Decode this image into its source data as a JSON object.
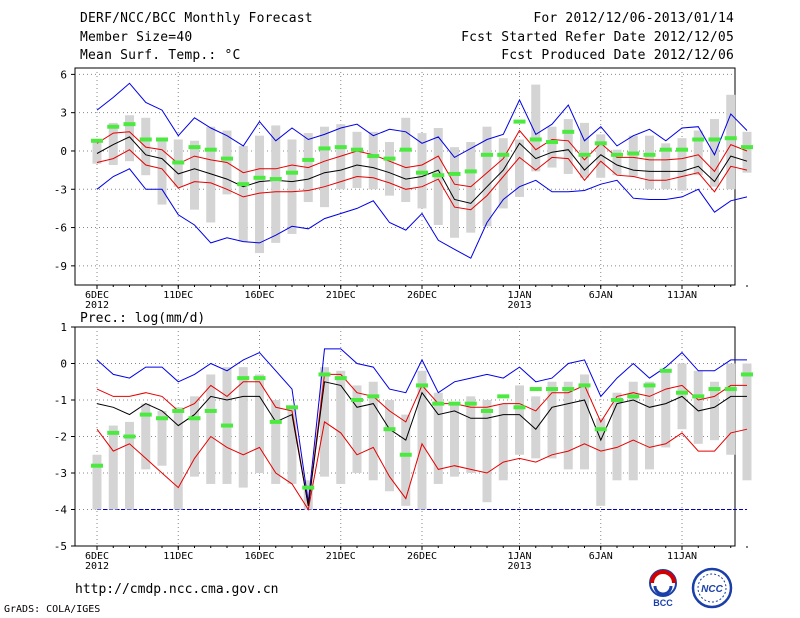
{
  "header": {
    "title": "DERF/NCC/BCC Monthly Forecast",
    "member_size": "Member Size=40",
    "variable": "Mean Surf. Temp.: °C",
    "period": "For 2012/12/06-2013/01/14",
    "refer_date": "Fcst Started Refer Date 2012/12/05",
    "produced_date": "Fcst Produced Date 2012/12/06"
  },
  "footer": {
    "url": "http://cmdp.ncc.cma.gov.cn",
    "grads": "GrADS: COLA/IGES",
    "logo_bcc": "BCC",
    "logo_ncc": "NCC"
  },
  "colors": {
    "ensemble_mean": "#000000",
    "spread": "#e60000",
    "extremes": "#0000e6",
    "box": "#d4d4d4",
    "median": "#4cea40",
    "grid": "#888888"
  },
  "chart_data": [
    {
      "type": "line",
      "title": "Mean Surf. Temp.: °C",
      "ylabel": "°C",
      "ylim": [
        -10.5,
        6.5
      ],
      "yticks": [
        6,
        3,
        0,
        -3,
        -6,
        -9
      ],
      "x_ticks": [
        {
          "day": 0,
          "label": "6DEC",
          "label2": "2012"
        },
        {
          "day": 5,
          "label": "11DEC"
        },
        {
          "day": 10,
          "label": "16DEC"
        },
        {
          "day": 15,
          "label": "21DEC"
        },
        {
          "day": 20,
          "label": "26DEC"
        },
        {
          "day": 26,
          "label": "1JAN",
          "label2": "2013"
        },
        {
          "day": 31,
          "label": "6JAN"
        },
        {
          "day": 36,
          "label": "11JAN"
        }
      ],
      "series": [
        {
          "name": "max",
          "values": [
            3.2,
            4.2,
            5.3,
            3.8,
            3.2,
            1.2,
            2.6,
            1.8,
            1.2,
            0.4,
            2.3,
            0.8,
            1.8,
            0.9,
            1.3,
            1.8,
            2.1,
            1.2,
            1.7,
            1.5,
            0.6,
            1.1,
            -0.5,
            0.2,
            0.9,
            1.3,
            4.0,
            1.3,
            2.1,
            3.6,
            0.8,
            1.9,
            0.4,
            1.2,
            1.7,
            0.8,
            1.8,
            1.9,
            -0.3,
            2.9,
            1.6
          ]
        },
        {
          "name": "upper",
          "values": [
            0.6,
            1.4,
            1.5,
            0.3,
            0.1,
            -1.0,
            -0.4,
            -0.7,
            -0.9,
            -1.7,
            -1.4,
            -1.4,
            -1.1,
            -1.3,
            -0.8,
            -0.4,
            0.0,
            -0.3,
            -0.8,
            -1.3,
            -1.1,
            -0.4,
            -2.6,
            -2.8,
            -1.7,
            -0.6,
            1.6,
            0.1,
            0.9,
            0.8,
            -0.7,
            0.6,
            -0.5,
            -0.5,
            -0.7,
            -0.7,
            -0.6,
            -0.3,
            -1.6,
            0.5,
            0.0
          ]
        },
        {
          "name": "mean",
          "values": [
            -0.2,
            0.5,
            1.1,
            -0.3,
            -0.6,
            -1.8,
            -1.4,
            -1.8,
            -2.2,
            -2.8,
            -2.4,
            -2.3,
            -2.4,
            -2.2,
            -1.7,
            -1.5,
            -1.1,
            -1.3,
            -1.7,
            -2.2,
            -2.0,
            -1.5,
            -3.8,
            -4.1,
            -2.8,
            -1.5,
            0.6,
            -0.6,
            -0.1,
            0.1,
            -1.5,
            -0.3,
            -1.1,
            -1.5,
            -1.6,
            -1.6,
            -1.6,
            -1.2,
            -2.4,
            -0.4,
            -0.8
          ]
        },
        {
          "name": "lower",
          "values": [
            -0.9,
            -0.6,
            0.1,
            -1.1,
            -1.4,
            -2.9,
            -2.4,
            -2.5,
            -3.0,
            -3.6,
            -3.3,
            -3.2,
            -3.2,
            -3.1,
            -2.8,
            -2.4,
            -2.0,
            -2.1,
            -2.5,
            -3.0,
            -2.8,
            -2.2,
            -4.4,
            -4.6,
            -3.5,
            -2.0,
            -0.5,
            -1.5,
            -0.5,
            -0.6,
            -2.3,
            -0.8,
            -1.9,
            -2.0,
            -2.3,
            -2.3,
            -2.0,
            -1.7,
            -3.2,
            -1.2,
            -1.5
          ]
        },
        {
          "name": "min",
          "values": [
            -3.0,
            -2.0,
            -1.4,
            -3.0,
            -3.0,
            -5.0,
            -5.8,
            -7.2,
            -6.8,
            -7.1,
            -7.2,
            -6.6,
            -5.9,
            -6.1,
            -5.3,
            -4.9,
            -4.5,
            -3.9,
            -5.6,
            -6.2,
            -4.9,
            -7.0,
            -7.7,
            -8.4,
            -5.6,
            -3.8,
            -2.8,
            -2.3,
            -3.2,
            -3.2,
            -3.1,
            -2.6,
            -2.3,
            -3.7,
            -3.8,
            -3.8,
            -3.6,
            -3.0,
            -4.8,
            -3.9,
            -3.6
          ]
        },
        {
          "name": "box_top",
          "values": [
            0.9,
            2.2,
            2.8,
            2.6,
            1.0,
            0.9,
            0.8,
            1.9,
            1.6,
            0.4,
            1.2,
            2.0,
            0.9,
            1.4,
            1.9,
            2.1,
            1.5,
            1.5,
            0.7,
            2.6,
            1.4,
            1.8,
            0.3,
            0.7,
            1.9,
            1.0,
            0.9,
            5.2,
            1.9,
            2.5,
            2.2,
            1.3,
            0.1,
            1.2,
            1.2,
            0.6,
            1.0,
            1.6,
            2.5,
            4.4,
            1.5
          ]
        },
        {
          "name": "box_bottom",
          "values": [
            -1.0,
            -1.1,
            -0.8,
            -1.9,
            -4.2,
            -2.8,
            -4.6,
            -5.6,
            -3.4,
            -7.1,
            -8.0,
            -7.2,
            -6.5,
            -4.0,
            -4.4,
            -3.0,
            -2.9,
            -3.0,
            -3.5,
            -4.0,
            -4.5,
            -5.8,
            -6.8,
            -6.4,
            -5.9,
            -4.5,
            -3.6,
            -1.6,
            -1.3,
            -1.8,
            -2.1,
            -2.1,
            -1.9,
            -2.0,
            -3.0,
            -3.0,
            -3.1,
            -1.9,
            -2.8,
            -3.0,
            -1.7
          ]
        },
        {
          "name": "median",
          "values": [
            0.8,
            1.9,
            2.1,
            0.9,
            0.9,
            -0.9,
            0.3,
            0.1,
            -0.6,
            -2.6,
            -2.1,
            -2.2,
            -1.7,
            -0.7,
            0.2,
            0.3,
            0.1,
            -0.4,
            -0.6,
            0.1,
            -1.7,
            -1.9,
            -1.8,
            -1.6,
            -0.3,
            -0.3,
            2.3,
            0.9,
            0.7,
            1.5,
            -0.3,
            0.6,
            -0.3,
            -0.2,
            -0.3,
            0.1,
            0.1,
            0.9,
            0.9,
            1.0,
            0.3
          ]
        }
      ]
    },
    {
      "type": "line",
      "title": "Prec.: log(mm/d)",
      "ylabel": "log(mm/d)",
      "ylim": [
        -5,
        1
      ],
      "yticks": [
        1,
        0,
        -1,
        -2,
        -3,
        -4,
        -5
      ],
      "baseline": -4,
      "x_ticks": [
        {
          "day": 0,
          "label": "6DEC",
          "label2": "2012"
        },
        {
          "day": 5,
          "label": "11DEC"
        },
        {
          "day": 10,
          "label": "16DEC"
        },
        {
          "day": 15,
          "label": "21DEC"
        },
        {
          "day": 20,
          "label": "26DEC"
        },
        {
          "day": 26,
          "label": "1JAN",
          "label2": "2013"
        },
        {
          "day": 31,
          "label": "6JAN"
        },
        {
          "day": 36,
          "label": "11JAN"
        }
      ],
      "series": [
        {
          "name": "max",
          "values": [
            0.1,
            -0.3,
            -0.4,
            -0.1,
            -0.1,
            -0.5,
            -0.3,
            0.0,
            -0.2,
            0.1,
            0.3,
            -0.2,
            -0.7,
            -3.8,
            0.4,
            0.4,
            0.0,
            -0.1,
            -0.7,
            -0.8,
            0.1,
            -0.8,
            -0.5,
            -0.4,
            -0.3,
            -0.4,
            -0.1,
            -0.5,
            -0.4,
            0.0,
            0.1,
            -0.9,
            -0.4,
            0.0,
            -0.4,
            -0.1,
            0.3,
            -0.2,
            -0.2,
            0.1,
            0.1
          ]
        },
        {
          "name": "upper",
          "values": [
            -0.7,
            -0.9,
            -0.9,
            -0.8,
            -0.9,
            -1.3,
            -1.1,
            -0.6,
            -0.9,
            -0.5,
            -0.5,
            -1.2,
            -1.3,
            -3.9,
            -0.3,
            -0.3,
            -0.8,
            -0.9,
            -1.3,
            -1.6,
            -0.6,
            -1.1,
            -1.1,
            -1.2,
            -1.2,
            -1.1,
            -1.1,
            -1.3,
            -0.8,
            -0.8,
            -0.6,
            -1.6,
            -0.9,
            -0.8,
            -0.9,
            -0.7,
            -0.6,
            -1.0,
            -0.9,
            -0.6,
            -0.6
          ]
        },
        {
          "name": "mean",
          "values": [
            -1.1,
            -1.2,
            -1.4,
            -1.1,
            -1.3,
            -1.7,
            -1.4,
            -0.9,
            -1.0,
            -0.9,
            -0.9,
            -1.6,
            -1.4,
            -3.9,
            -0.5,
            -0.6,
            -1.2,
            -1.1,
            -1.8,
            -2.1,
            -0.8,
            -1.4,
            -1.3,
            -1.5,
            -1.5,
            -1.4,
            -1.4,
            -1.8,
            -1.2,
            -1.1,
            -1.0,
            -2.1,
            -1.1,
            -1.0,
            -1.2,
            -1.1,
            -0.9,
            -1.3,
            -1.2,
            -0.9,
            -0.9
          ]
        },
        {
          "name": "lower",
          "values": [
            -1.8,
            -2.4,
            -2.2,
            -2.6,
            -3.0,
            -3.4,
            -2.6,
            -2.0,
            -2.3,
            -2.5,
            -2.3,
            -3.0,
            -3.3,
            -4.0,
            -1.6,
            -1.9,
            -2.5,
            -2.3,
            -3.1,
            -3.7,
            -2.2,
            -2.9,
            -2.8,
            -2.9,
            -3.0,
            -2.7,
            -2.6,
            -2.7,
            -2.5,
            -2.4,
            -2.2,
            -2.4,
            -2.3,
            -2.1,
            -2.3,
            -2.2,
            -1.9,
            -2.4,
            -2.4,
            -1.9,
            -1.8
          ]
        },
        {
          "name": "box_top",
          "values": [
            -2.5,
            -1.7,
            -1.6,
            -1.1,
            -1.3,
            -1.2,
            -0.9,
            -0.3,
            -0.1,
            -0.1,
            -0.3,
            -1.0,
            -1.2,
            -3.2,
            -0.1,
            -0.2,
            -0.6,
            -0.5,
            -1.0,
            -1.4,
            -0.2,
            -0.8,
            -1.1,
            -0.9,
            -1.0,
            -1.1,
            -0.6,
            -0.9,
            -0.5,
            -0.5,
            -0.3,
            -1.5,
            -0.8,
            -0.5,
            -0.5,
            -0.2,
            0.0,
            -0.2,
            -0.5,
            0.0,
            0.0
          ]
        },
        {
          "name": "box_bottom",
          "values": [
            -4.0,
            -4.0,
            -4.0,
            -2.9,
            -2.8,
            -4.0,
            -3.1,
            -3.3,
            -3.3,
            -3.4,
            -3.0,
            -3.3,
            -3.3,
            -4.0,
            -3.1,
            -3.3,
            -3.0,
            -3.2,
            -3.5,
            -3.9,
            -4.0,
            -3.3,
            -3.1,
            -3.0,
            -3.8,
            -3.2,
            -2.5,
            -2.6,
            -2.6,
            -2.9,
            -2.9,
            -3.9,
            -3.2,
            -3.2,
            -2.9,
            -2.3,
            -1.8,
            -2.2,
            -2.1,
            -2.5,
            -3.2
          ]
        },
        {
          "name": "median",
          "values": [
            -2.8,
            -1.9,
            -2.0,
            -1.4,
            -1.5,
            -1.3,
            -1.5,
            -1.3,
            -1.7,
            -0.4,
            -0.4,
            -1.6,
            -1.2,
            -3.4,
            -0.3,
            -0.4,
            -1.0,
            -0.9,
            -1.8,
            -2.5,
            -0.6,
            -1.1,
            -1.1,
            -1.1,
            -1.3,
            -0.9,
            -1.2,
            -0.7,
            -0.7,
            -0.7,
            -0.6,
            -1.8,
            -1.0,
            -0.9,
            -0.6,
            -0.2,
            -0.8,
            -0.9,
            -0.7,
            -0.7,
            -0.3
          ]
        }
      ]
    }
  ]
}
